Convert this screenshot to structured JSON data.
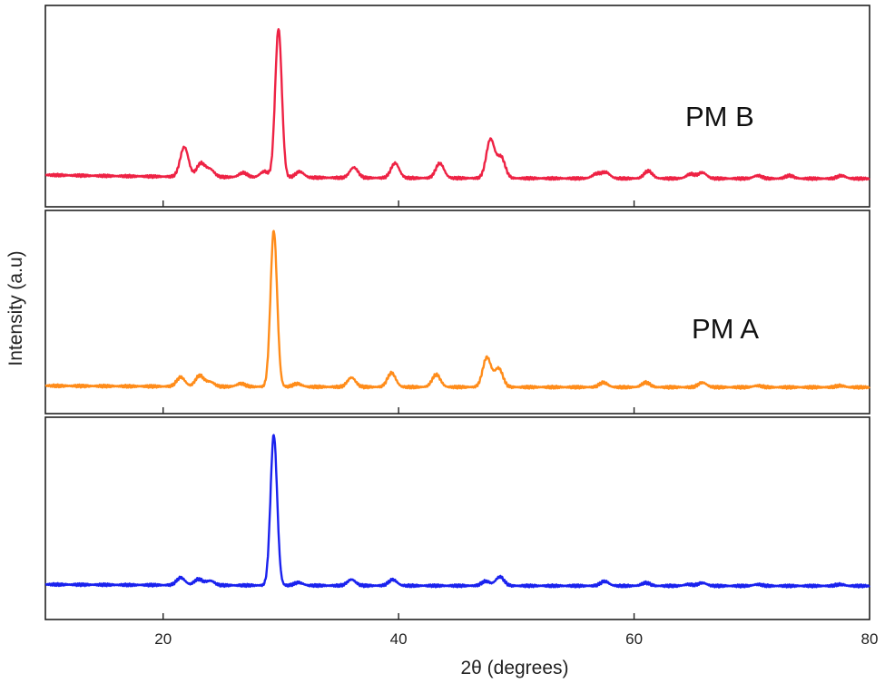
{
  "chart_data": {
    "type": "line",
    "xlabel": "2θ (degrees)",
    "ylabel": "Intensity (a.u)",
    "xlim": [
      10,
      80
    ],
    "xticks": [
      20,
      40,
      60,
      80
    ],
    "grid": false,
    "stacked_panels": true,
    "series": [
      {
        "name": "PM B",
        "color": "#ee2244",
        "baseline": 0.05,
        "peaks": [
          [
            21.8,
            0.2
          ],
          [
            23.2,
            0.09
          ],
          [
            24.0,
            0.05
          ],
          [
            26.8,
            0.03
          ],
          [
            28.6,
            0.04
          ],
          [
            29.8,
            1.0
          ],
          [
            31.6,
            0.04
          ],
          [
            36.2,
            0.07
          ],
          [
            39.7,
            0.1
          ],
          [
            43.5,
            0.1
          ],
          [
            47.8,
            0.26
          ],
          [
            48.7,
            0.14
          ],
          [
            56.8,
            0.03
          ],
          [
            57.6,
            0.04
          ],
          [
            61.2,
            0.05
          ],
          [
            64.8,
            0.03
          ],
          [
            65.8,
            0.04
          ],
          [
            70.5,
            0.02
          ],
          [
            73.2,
            0.02
          ],
          [
            77.6,
            0.02
          ]
        ]
      },
      {
        "name": "PM A",
        "color": "#ff8c1a",
        "baseline": 0.02,
        "peaks": [
          [
            21.5,
            0.06
          ],
          [
            23.1,
            0.07
          ],
          [
            24.0,
            0.03
          ],
          [
            26.6,
            0.02
          ],
          [
            29.4,
            1.0
          ],
          [
            31.4,
            0.02
          ],
          [
            36.0,
            0.06
          ],
          [
            39.4,
            0.09
          ],
          [
            43.2,
            0.08
          ],
          [
            47.5,
            0.19
          ],
          [
            48.5,
            0.12
          ],
          [
            57.4,
            0.03
          ],
          [
            61.0,
            0.03
          ],
          [
            65.8,
            0.03
          ],
          [
            70.5,
            0.01
          ],
          [
            77.5,
            0.01
          ]
        ]
      },
      {
        "name": "",
        "color": "#1a22ee",
        "baseline": 0.02,
        "peaks": [
          [
            21.5,
            0.05
          ],
          [
            23.0,
            0.04
          ],
          [
            24.0,
            0.03
          ],
          [
            29.4,
            1.0
          ],
          [
            31.5,
            0.02
          ],
          [
            36.0,
            0.04
          ],
          [
            39.5,
            0.04
          ],
          [
            47.4,
            0.03
          ],
          [
            48.6,
            0.06
          ],
          [
            57.5,
            0.03
          ],
          [
            61.0,
            0.02
          ],
          [
            64.6,
            0.01
          ],
          [
            65.8,
            0.02
          ],
          [
            70.5,
            0.01
          ],
          [
            77.5,
            0.01
          ]
        ]
      }
    ]
  }
}
